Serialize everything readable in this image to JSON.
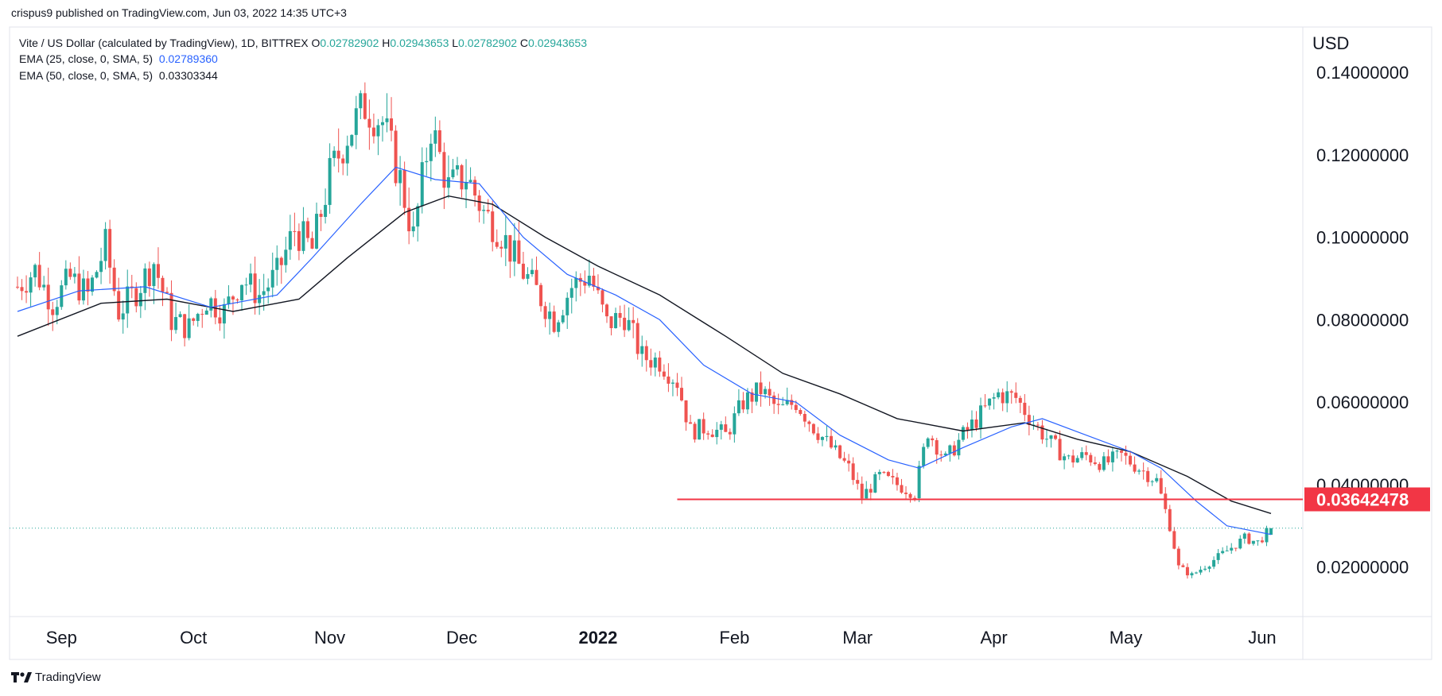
{
  "header": {
    "published": "crispus9 published on TradingView.com, Jun 03, 2022 14:35 UTC+3"
  },
  "legend": {
    "symbol": "Vite / US Dollar (calculated by TradingView), 1D, BITTREX",
    "o_label": "O",
    "o": "0.02782902",
    "h_label": "H",
    "h": "0.02943653",
    "l_label": "L",
    "l": "0.02782902",
    "c_label": "C",
    "c": "0.02943653",
    "ema25_label": "EMA (25, close, 0, SMA, 5)",
    "ema25_value": "0.02789360",
    "ema50_label": "EMA (50, close, 0, SMA, 5)",
    "ema50_value": "0.03303344"
  },
  "footer": {
    "brand": "TradingView"
  },
  "colors": {
    "up": "#26a69a",
    "down": "#ef5350",
    "ema25": "#2962ff",
    "ema50": "#131722",
    "level_line": "#f23645",
    "grid": "#e0e3eb",
    "text": "#131722"
  },
  "chart_data": {
    "type": "candlestick",
    "currency": "USD",
    "y_ticks": [
      "0.14000000",
      "0.12000000",
      "0.10000000",
      "0.08000000",
      "0.06000000",
      "0.04000000",
      "0.02000000"
    ],
    "ylim": [
      0.008,
      0.151
    ],
    "x_ticks": [
      "Sep",
      "Oct",
      "Nov",
      "Dec",
      "2022",
      "Feb",
      "Mar",
      "Apr",
      "May",
      "Jun"
    ],
    "x_tick_dates": [
      "2021-09-01",
      "2021-10-01",
      "2021-11-01",
      "2021-12-01",
      "2022-01-01",
      "2022-02-01",
      "2022-03-01",
      "2022-04-01",
      "2022-05-01",
      "2022-06-01"
    ],
    "date_range": [
      "2021-08-22",
      "2022-06-03"
    ],
    "horizontal_level": {
      "value": 0.03642478,
      "label": "0.03642478",
      "from_date": "2022-01-19"
    },
    "last_price": 0.02943653,
    "close_series": [
      [
        "2021-08-22",
        0.088
      ],
      [
        "2021-08-26",
        0.092
      ],
      [
        "2021-08-30",
        0.084
      ],
      [
        "2021-09-03",
        0.09
      ],
      [
        "2021-09-07",
        0.086
      ],
      [
        "2021-09-11",
        0.098
      ],
      [
        "2021-09-14",
        0.082
      ],
      [
        "2021-09-18",
        0.087
      ],
      [
        "2021-09-22",
        0.094
      ],
      [
        "2021-09-26",
        0.08
      ],
      [
        "2021-09-30",
        0.078
      ],
      [
        "2021-10-04",
        0.085
      ],
      [
        "2021-10-08",
        0.082
      ],
      [
        "2021-10-12",
        0.09
      ],
      [
        "2021-10-16",
        0.086
      ],
      [
        "2021-10-20",
        0.091
      ],
      [
        "2021-10-24",
        0.102
      ],
      [
        "2021-10-28",
        0.097
      ],
      [
        "2021-11-01",
        0.115
      ],
      [
        "2021-11-05",
        0.125
      ],
      [
        "2021-11-09",
        0.132
      ],
      [
        "2021-11-13",
        0.128
      ],
      [
        "2021-11-17",
        0.114
      ],
      [
        "2021-11-20",
        0.1
      ],
      [
        "2021-11-24",
        0.127
      ],
      [
        "2021-11-28",
        0.112
      ],
      [
        "2021-12-02",
        0.115
      ],
      [
        "2021-12-06",
        0.106
      ],
      [
        "2021-12-10",
        0.101
      ],
      [
        "2021-12-14",
        0.093
      ],
      [
        "2021-12-18",
        0.087
      ],
      [
        "2021-12-22",
        0.08
      ],
      [
        "2021-12-26",
        0.088
      ],
      [
        "2021-12-30",
        0.091
      ],
      [
        "2022-01-03",
        0.079
      ],
      [
        "2022-01-07",
        0.081
      ],
      [
        "2022-01-11",
        0.071
      ],
      [
        "2022-01-15",
        0.07
      ],
      [
        "2022-01-19",
        0.065
      ],
      [
        "2022-01-22",
        0.053
      ],
      [
        "2022-01-26",
        0.054
      ],
      [
        "2022-01-30",
        0.052
      ],
      [
        "2022-02-03",
        0.06
      ],
      [
        "2022-02-07",
        0.063
      ],
      [
        "2022-02-11",
        0.058
      ],
      [
        "2022-02-15",
        0.06
      ],
      [
        "2022-02-19",
        0.054
      ],
      [
        "2022-02-23",
        0.049
      ],
      [
        "2022-02-27",
        0.044
      ],
      [
        "2022-03-02",
        0.037
      ],
      [
        "2022-03-06",
        0.042
      ],
      [
        "2022-03-10",
        0.04
      ],
      [
        "2022-03-14",
        0.038
      ],
      [
        "2022-03-17",
        0.053
      ],
      [
        "2022-03-21",
        0.046
      ],
      [
        "2022-03-25",
        0.052
      ],
      [
        "2022-03-29",
        0.057
      ],
      [
        "2022-04-02",
        0.062
      ],
      [
        "2022-04-06",
        0.061
      ],
      [
        "2022-04-10",
        0.055
      ],
      [
        "2022-04-14",
        0.05
      ],
      [
        "2022-04-18",
        0.046
      ],
      [
        "2022-04-22",
        0.047
      ],
      [
        "2022-04-26",
        0.045
      ],
      [
        "2022-04-30",
        0.047
      ],
      [
        "2022-05-04",
        0.044
      ],
      [
        "2022-05-08",
        0.041
      ],
      [
        "2022-05-11",
        0.03
      ],
      [
        "2022-05-13",
        0.02
      ],
      [
        "2022-05-16",
        0.018
      ],
      [
        "2022-05-20",
        0.021
      ],
      [
        "2022-05-24",
        0.024
      ],
      [
        "2022-05-28",
        0.027
      ],
      [
        "2022-05-31",
        0.026
      ],
      [
        "2022-06-03",
        0.0294
      ]
    ],
    "ema25_series": [
      [
        "2021-08-22",
        0.082
      ],
      [
        "2021-09-05",
        0.087
      ],
      [
        "2021-09-20",
        0.088
      ],
      [
        "2021-10-05",
        0.083
      ],
      [
        "2021-10-20",
        0.086
      ],
      [
        "2021-10-28",
        0.095
      ],
      [
        "2021-11-08",
        0.108
      ],
      [
        "2021-11-16",
        0.117
      ],
      [
        "2021-11-25",
        0.114
      ],
      [
        "2021-12-05",
        0.113
      ],
      [
        "2021-12-15",
        0.1
      ],
      [
        "2021-12-25",
        0.091
      ],
      [
        "2022-01-05",
        0.086
      ],
      [
        "2022-01-15",
        0.08
      ],
      [
        "2022-01-25",
        0.069
      ],
      [
        "2022-02-05",
        0.062
      ],
      [
        "2022-02-15",
        0.06
      ],
      [
        "2022-02-25",
        0.052
      ],
      [
        "2022-03-08",
        0.046
      ],
      [
        "2022-03-15",
        0.044
      ],
      [
        "2022-03-25",
        0.049
      ],
      [
        "2022-04-05",
        0.054
      ],
      [
        "2022-04-12",
        0.056
      ],
      [
        "2022-04-22",
        0.052
      ],
      [
        "2022-05-02",
        0.048
      ],
      [
        "2022-05-09",
        0.044
      ],
      [
        "2022-05-17",
        0.036
      ],
      [
        "2022-05-24",
        0.03
      ],
      [
        "2022-06-03",
        0.0279
      ]
    ],
    "ema50_series": [
      [
        "2021-08-22",
        0.076
      ],
      [
        "2021-09-10",
        0.084
      ],
      [
        "2021-09-25",
        0.085
      ],
      [
        "2021-10-10",
        0.082
      ],
      [
        "2021-10-25",
        0.085
      ],
      [
        "2021-11-05",
        0.095
      ],
      [
        "2021-11-18",
        0.106
      ],
      [
        "2021-11-28",
        0.11
      ],
      [
        "2021-12-08",
        0.108
      ],
      [
        "2021-12-20",
        0.1
      ],
      [
        "2022-01-01",
        0.093
      ],
      [
        "2022-01-15",
        0.086
      ],
      [
        "2022-01-30",
        0.076
      ],
      [
        "2022-02-12",
        0.067
      ],
      [
        "2022-02-25",
        0.062
      ],
      [
        "2022-03-10",
        0.056
      ],
      [
        "2022-03-25",
        0.053
      ],
      [
        "2022-04-08",
        0.055
      ],
      [
        "2022-04-20",
        0.051
      ],
      [
        "2022-05-02",
        0.048
      ],
      [
        "2022-05-15",
        0.042
      ],
      [
        "2022-05-25",
        0.036
      ],
      [
        "2022-06-03",
        0.033
      ]
    ],
    "grid": true
  }
}
